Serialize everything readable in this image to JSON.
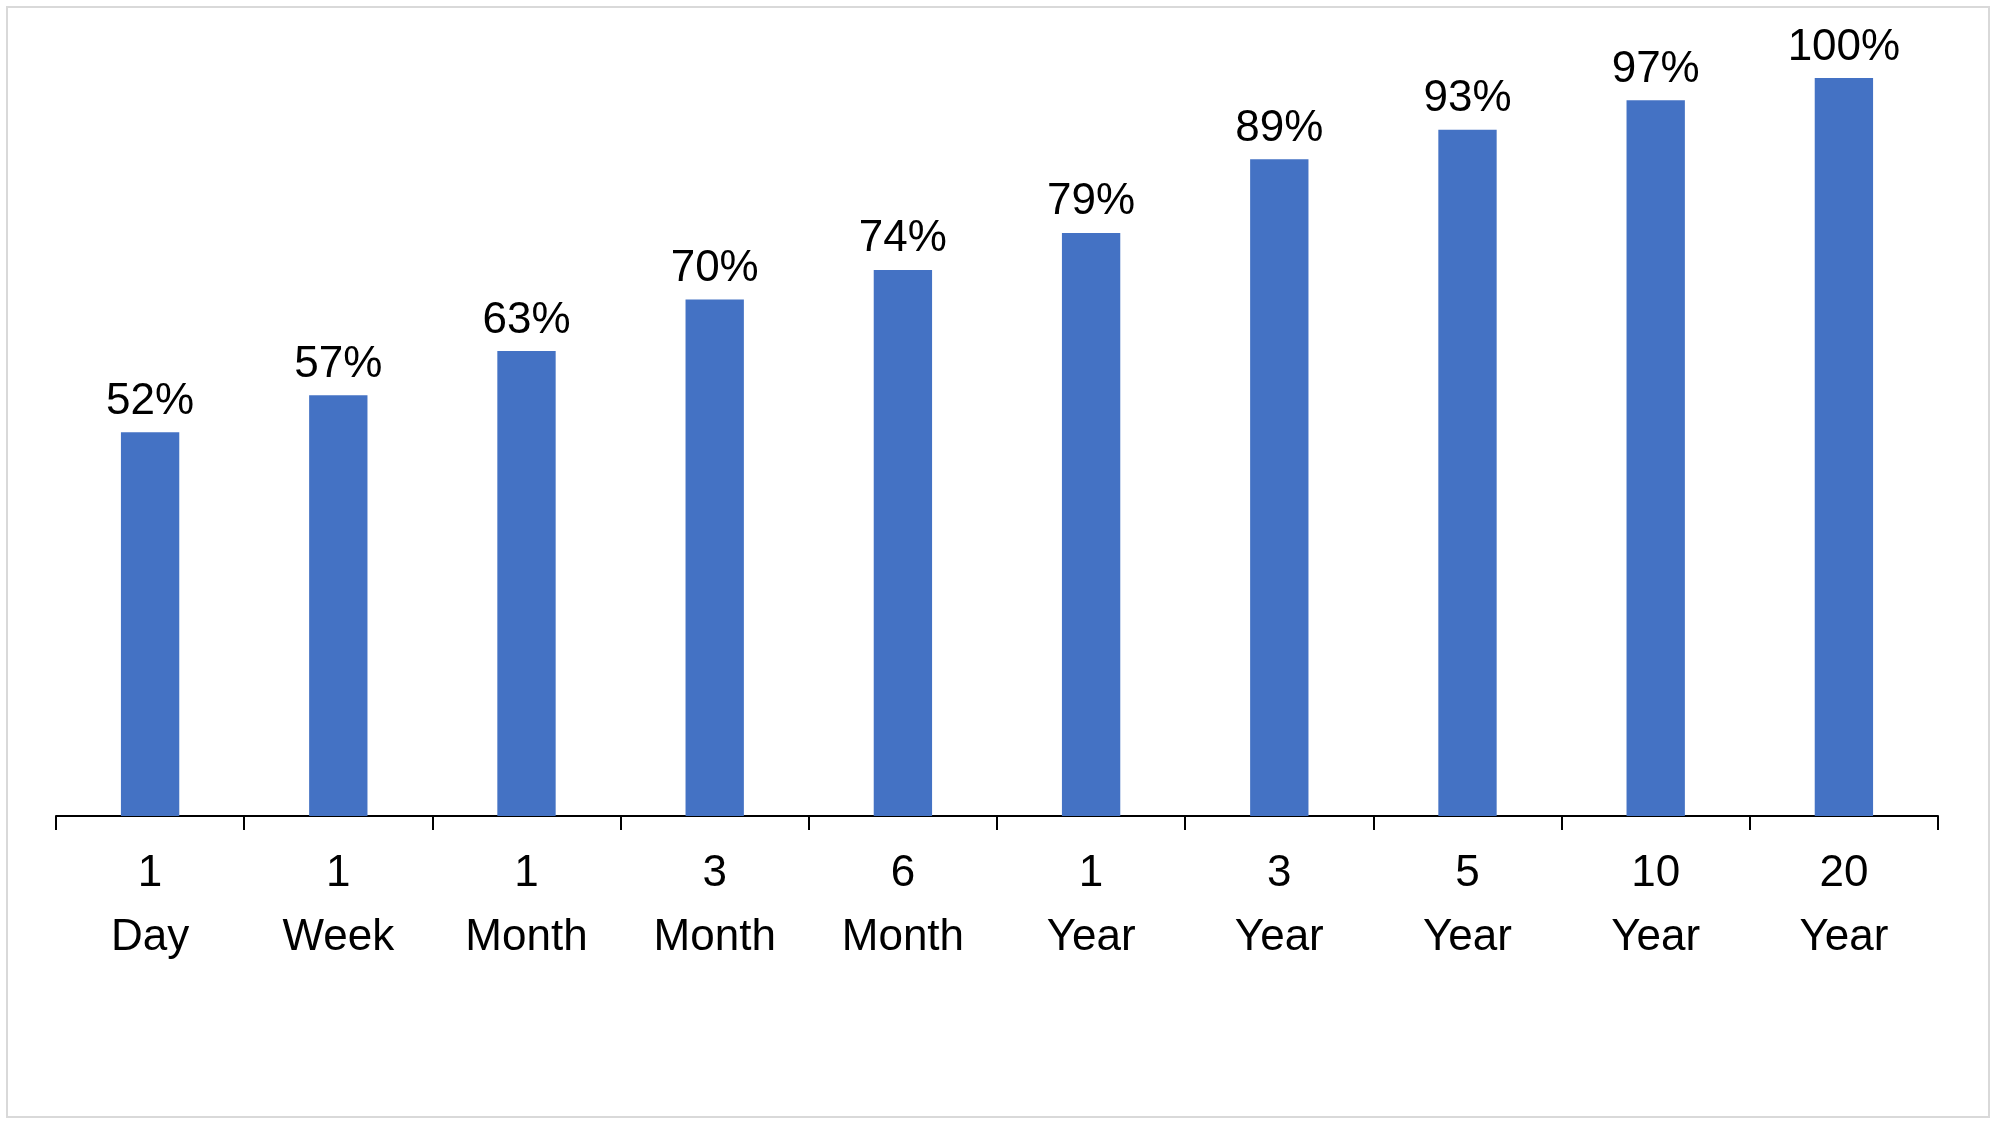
{
  "chart_data": {
    "type": "bar",
    "categories": [
      "1 Day",
      "1 Week",
      "1 Month",
      "3 Month",
      "6 Month",
      "1 Year",
      "3 Year",
      "5 Year",
      "10 Year",
      "20 Year"
    ],
    "values": [
      52,
      57,
      63,
      70,
      74,
      79,
      89,
      93,
      97,
      100
    ],
    "value_labels": [
      "52%",
      "57%",
      "63%",
      "70%",
      "74%",
      "79%",
      "89%",
      "93%",
      "97%",
      "100%"
    ],
    "color": "#4472c4",
    "grid": false
  }
}
